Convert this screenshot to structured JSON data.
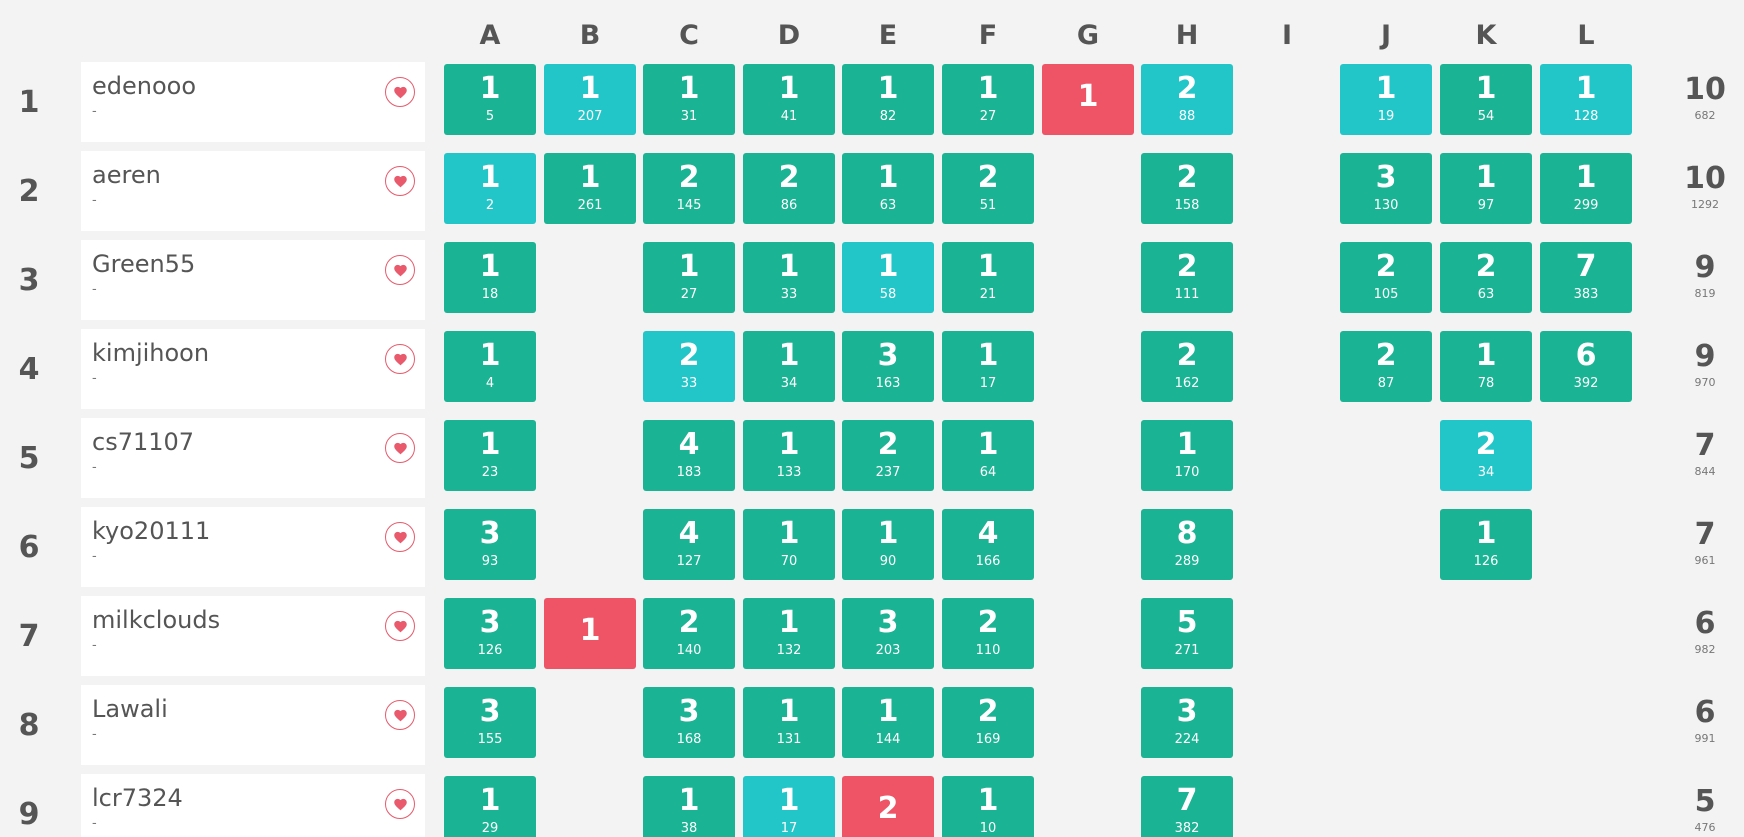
{
  "problems": [
    "A",
    "B",
    "C",
    "D",
    "E",
    "F",
    "G",
    "H",
    "I",
    "J",
    "K",
    "L"
  ],
  "colors": {
    "solved": "#1ab394",
    "first_solve": "#23c6c8",
    "failed": "#ef5466",
    "favorite": "#e85a6c"
  },
  "favorite_icon": "heart-icon",
  "rows": [
    {
      "rank": "1",
      "name": "edenooo",
      "sub": "-",
      "solved": "10",
      "penalty": "682",
      "cells": {
        "A": {
          "t": "1",
          "m": "5",
          "s": "solved"
        },
        "B": {
          "t": "1",
          "m": "207",
          "s": "first"
        },
        "C": {
          "t": "1",
          "m": "31",
          "s": "solved"
        },
        "D": {
          "t": "1",
          "m": "41",
          "s": "solved"
        },
        "E": {
          "t": "1",
          "m": "82",
          "s": "solved"
        },
        "F": {
          "t": "1",
          "m": "27",
          "s": "solved"
        },
        "G": {
          "t": "1",
          "m": "",
          "s": "failed"
        },
        "H": {
          "t": "2",
          "m": "88",
          "s": "first"
        },
        "J": {
          "t": "1",
          "m": "19",
          "s": "first"
        },
        "K": {
          "t": "1",
          "m": "54",
          "s": "solved"
        },
        "L": {
          "t": "1",
          "m": "128",
          "s": "first"
        }
      }
    },
    {
      "rank": "2",
      "name": "aeren",
      "sub": "-",
      "solved": "10",
      "penalty": "1292",
      "cells": {
        "A": {
          "t": "1",
          "m": "2",
          "s": "first"
        },
        "B": {
          "t": "1",
          "m": "261",
          "s": "solved"
        },
        "C": {
          "t": "2",
          "m": "145",
          "s": "solved"
        },
        "D": {
          "t": "2",
          "m": "86",
          "s": "solved"
        },
        "E": {
          "t": "1",
          "m": "63",
          "s": "solved"
        },
        "F": {
          "t": "2",
          "m": "51",
          "s": "solved"
        },
        "H": {
          "t": "2",
          "m": "158",
          "s": "solved"
        },
        "J": {
          "t": "3",
          "m": "130",
          "s": "solved"
        },
        "K": {
          "t": "1",
          "m": "97",
          "s": "solved"
        },
        "L": {
          "t": "1",
          "m": "299",
          "s": "solved"
        }
      }
    },
    {
      "rank": "3",
      "name": "Green55",
      "sub": "-",
      "solved": "9",
      "penalty": "819",
      "cells": {
        "A": {
          "t": "1",
          "m": "18",
          "s": "solved"
        },
        "C": {
          "t": "1",
          "m": "27",
          "s": "solved"
        },
        "D": {
          "t": "1",
          "m": "33",
          "s": "solved"
        },
        "E": {
          "t": "1",
          "m": "58",
          "s": "first"
        },
        "F": {
          "t": "1",
          "m": "21",
          "s": "solved"
        },
        "H": {
          "t": "2",
          "m": "111",
          "s": "solved"
        },
        "J": {
          "t": "2",
          "m": "105",
          "s": "solved"
        },
        "K": {
          "t": "2",
          "m": "63",
          "s": "solved"
        },
        "L": {
          "t": "7",
          "m": "383",
          "s": "solved"
        }
      }
    },
    {
      "rank": "4",
      "name": "kimjihoon",
      "sub": "-",
      "solved": "9",
      "penalty": "970",
      "cells": {
        "A": {
          "t": "1",
          "m": "4",
          "s": "solved"
        },
        "C": {
          "t": "2",
          "m": "33",
          "s": "first"
        },
        "D": {
          "t": "1",
          "m": "34",
          "s": "solved"
        },
        "E": {
          "t": "3",
          "m": "163",
          "s": "solved"
        },
        "F": {
          "t": "1",
          "m": "17",
          "s": "solved"
        },
        "H": {
          "t": "2",
          "m": "162",
          "s": "solved"
        },
        "J": {
          "t": "2",
          "m": "87",
          "s": "solved"
        },
        "K": {
          "t": "1",
          "m": "78",
          "s": "solved"
        },
        "L": {
          "t": "6",
          "m": "392",
          "s": "solved"
        }
      }
    },
    {
      "rank": "5",
      "name": "cs71107",
      "sub": "-",
      "solved": "7",
      "penalty": "844",
      "cells": {
        "A": {
          "t": "1",
          "m": "23",
          "s": "solved"
        },
        "C": {
          "t": "4",
          "m": "183",
          "s": "solved"
        },
        "D": {
          "t": "1",
          "m": "133",
          "s": "solved"
        },
        "E": {
          "t": "2",
          "m": "237",
          "s": "solved"
        },
        "F": {
          "t": "1",
          "m": "64",
          "s": "solved"
        },
        "H": {
          "t": "1",
          "m": "170",
          "s": "solved"
        },
        "K": {
          "t": "2",
          "m": "34",
          "s": "first"
        }
      }
    },
    {
      "rank": "6",
      "name": "kyo20111",
      "sub": "-",
      "solved": "7",
      "penalty": "961",
      "cells": {
        "A": {
          "t": "3",
          "m": "93",
          "s": "solved"
        },
        "C": {
          "t": "4",
          "m": "127",
          "s": "solved"
        },
        "D": {
          "t": "1",
          "m": "70",
          "s": "solved"
        },
        "E": {
          "t": "1",
          "m": "90",
          "s": "solved"
        },
        "F": {
          "t": "4",
          "m": "166",
          "s": "solved"
        },
        "H": {
          "t": "8",
          "m": "289",
          "s": "solved"
        },
        "K": {
          "t": "1",
          "m": "126",
          "s": "solved"
        }
      }
    },
    {
      "rank": "7",
      "name": "milkclouds",
      "sub": "-",
      "solved": "6",
      "penalty": "982",
      "cells": {
        "A": {
          "t": "3",
          "m": "126",
          "s": "solved"
        },
        "B": {
          "t": "1",
          "m": "",
          "s": "failed"
        },
        "C": {
          "t": "2",
          "m": "140",
          "s": "solved"
        },
        "D": {
          "t": "1",
          "m": "132",
          "s": "solved"
        },
        "E": {
          "t": "3",
          "m": "203",
          "s": "solved"
        },
        "F": {
          "t": "2",
          "m": "110",
          "s": "solved"
        },
        "H": {
          "t": "5",
          "m": "271",
          "s": "solved"
        }
      }
    },
    {
      "rank": "8",
      "name": "Lawali",
      "sub": "-",
      "solved": "6",
      "penalty": "991",
      "cells": {
        "A": {
          "t": "3",
          "m": "155",
          "s": "solved"
        },
        "C": {
          "t": "3",
          "m": "168",
          "s": "solved"
        },
        "D": {
          "t": "1",
          "m": "131",
          "s": "solved"
        },
        "E": {
          "t": "1",
          "m": "144",
          "s": "solved"
        },
        "F": {
          "t": "2",
          "m": "169",
          "s": "solved"
        },
        "H": {
          "t": "3",
          "m": "224",
          "s": "solved"
        }
      }
    },
    {
      "rank": "9",
      "name": "lcr7324",
      "sub": "-",
      "solved": "5",
      "penalty": "476",
      "cells": {
        "A": {
          "t": "1",
          "m": "29",
          "s": "solved"
        },
        "C": {
          "t": "1",
          "m": "38",
          "s": "solved"
        },
        "D": {
          "t": "1",
          "m": "17",
          "s": "first"
        },
        "E": {
          "t": "2",
          "m": "",
          "s": "failed"
        },
        "F": {
          "t": "1",
          "m": "10",
          "s": "solved"
        },
        "H": {
          "t": "7",
          "m": "382",
          "s": "solved"
        }
      }
    }
  ]
}
